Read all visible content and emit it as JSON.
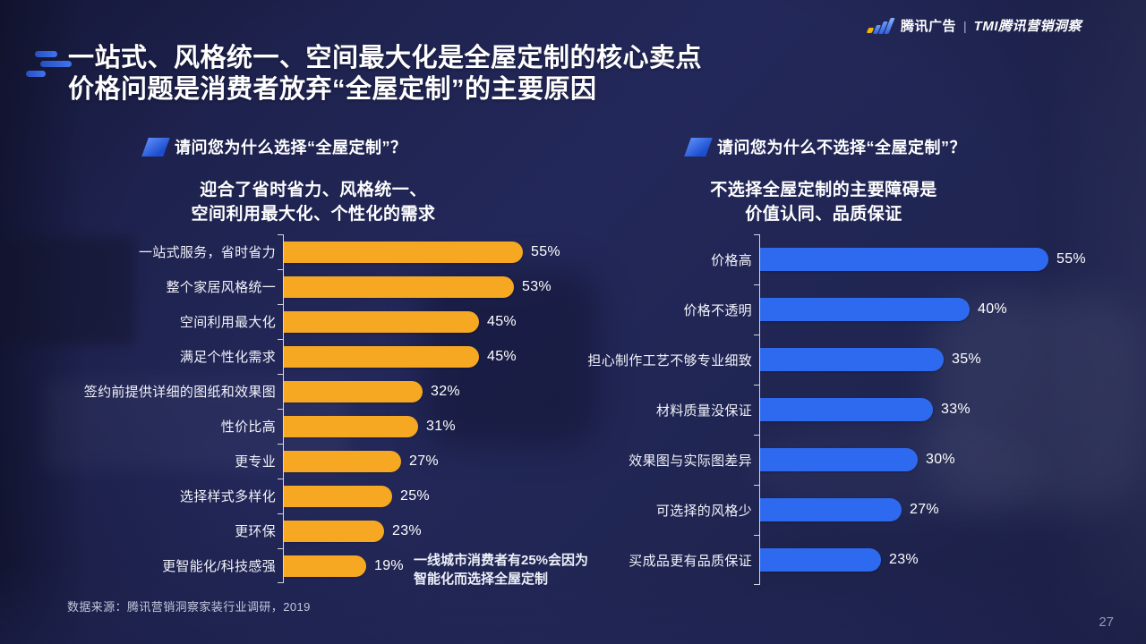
{
  "header": {
    "brand_left": "腾讯广告",
    "brand_divider": "|",
    "brand_right": "TMI腾讯营销洞察",
    "title_line1": "一站式、风格统一、空间最大化是全屋定制的核心卖点",
    "title_line2": "价格问题是消费者放弃“全屋定制”的主要原因"
  },
  "left_panel": {
    "subtitle_line1": "迎合了省时省力、风格统一、",
    "subtitle_line2": "空间利用最大化、个性化的需求",
    "annotation_line1": "一线城市消费者有25%会因为",
    "annotation_line2": "智能化而选择全屋定制"
  },
  "right_panel": {
    "subtitle_line1": "不选择全屋定制的主要障碍是",
    "subtitle_line2": "价值认同、品质保证"
  },
  "footer": {
    "source": "数据来源：腾讯营销洞察家装行业调研，2019",
    "page_number": "27"
  },
  "chart_data": [
    {
      "type": "bar",
      "orientation": "horizontal",
      "title": "请问您为什么选择“全屋定制”？",
      "subtitle": "迎合了省时省力、风格统一、空间利用最大化、个性化的需求",
      "categories": [
        "一站式服务，省时省力",
        "整个家居风格统一",
        "空间利用最大化",
        "满足个性化需求",
        "签约前提供详细的图纸和效果图",
        "性价比高",
        "更专业",
        "选择样式多样化",
        "更环保",
        "更智能化/科技感强"
      ],
      "values": [
        55,
        53,
        45,
        45,
        32,
        31,
        27,
        25,
        23,
        19
      ],
      "unit": "%",
      "bar_color": "#F7A823",
      "xlim": [
        0,
        60
      ],
      "grid": false,
      "legend": false,
      "annotation": "一线城市消费者有25%会因为智能化而选择全屋定制"
    },
    {
      "type": "bar",
      "orientation": "horizontal",
      "title": "请问您为什么不选择“全屋定制”？",
      "subtitle": "不选择全屋定制的主要障碍是价值认同、品质保证",
      "categories": [
        "价格高",
        "价格不透明",
        "担心制作工艺不够专业细致",
        "材料质量没保证",
        "效果图与实际图差异",
        "可选择的风格少",
        "买成品更有品质保证"
      ],
      "values": [
        55,
        40,
        35,
        33,
        30,
        27,
        23
      ],
      "unit": "%",
      "bar_color": "#2E6AEF",
      "xlim": [
        0,
        60
      ],
      "grid": false,
      "legend": false
    }
  ]
}
